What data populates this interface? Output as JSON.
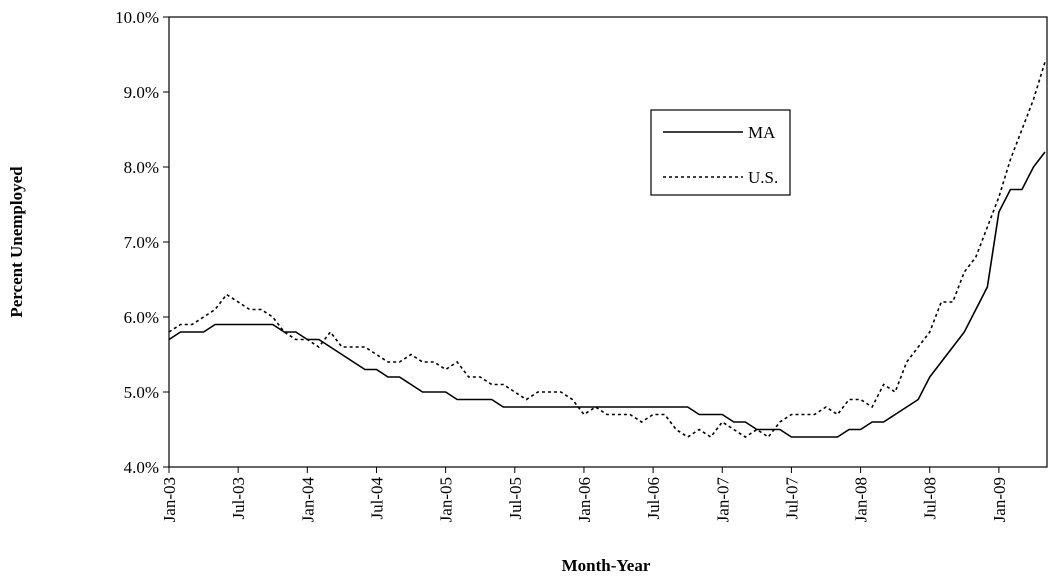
{
  "chart_data": {
    "type": "line",
    "x_label": "Month-Year",
    "y_label": "Percent Unemployed",
    "categories": [
      "Jan-03",
      null,
      null,
      null,
      null,
      null,
      "Jul-03",
      null,
      null,
      null,
      null,
      null,
      "Jan-04",
      null,
      null,
      null,
      null,
      null,
      "Jul-04",
      null,
      null,
      null,
      null,
      null,
      "Jan-05",
      null,
      null,
      null,
      null,
      null,
      "Jul-05",
      null,
      null,
      null,
      null,
      null,
      "Jan-06",
      null,
      null,
      null,
      null,
      null,
      "Jul-06",
      null,
      null,
      null,
      null,
      null,
      "Jan-07",
      null,
      null,
      null,
      null,
      null,
      "Jul-07",
      null,
      null,
      null,
      null,
      null,
      "Jan-08",
      null,
      null,
      null,
      null,
      null,
      "Jul-08",
      null,
      null,
      null,
      null,
      null,
      "Jan-09",
      null,
      null,
      null,
      null
    ],
    "series": [
      {
        "name": "MA",
        "color": "#000000",
        "style": "solid",
        "values": [
          5.7,
          5.8,
          5.8,
          5.8,
          5.9,
          5.9,
          5.9,
          5.9,
          5.9,
          5.9,
          5.8,
          5.8,
          5.7,
          5.7,
          5.6,
          5.5,
          5.4,
          5.3,
          5.3,
          5.2,
          5.2,
          5.1,
          5.0,
          5.0,
          5.0,
          4.9,
          4.9,
          4.9,
          4.9,
          4.8,
          4.8,
          4.8,
          4.8,
          4.8,
          4.8,
          4.8,
          4.8,
          4.8,
          4.8,
          4.8,
          4.8,
          4.8,
          4.8,
          4.8,
          4.8,
          4.8,
          4.7,
          4.7,
          4.7,
          4.6,
          4.6,
          4.5,
          4.5,
          4.5,
          4.4,
          4.4,
          4.4,
          4.4,
          4.4,
          4.5,
          4.5,
          4.6,
          4.6,
          4.7,
          4.8,
          4.9,
          5.2,
          5.4,
          5.6,
          5.8,
          6.1,
          6.4,
          7.4,
          7.7,
          7.7,
          8.0,
          8.2
        ]
      },
      {
        "name": "U.S.",
        "color": "#000000",
        "style": "dotted",
        "values": [
          5.8,
          5.9,
          5.9,
          6.0,
          6.1,
          6.3,
          6.2,
          6.1,
          6.1,
          6.0,
          5.8,
          5.7,
          5.7,
          5.6,
          5.8,
          5.6,
          5.6,
          5.6,
          5.5,
          5.4,
          5.4,
          5.5,
          5.4,
          5.4,
          5.3,
          5.4,
          5.2,
          5.2,
          5.1,
          5.1,
          5.0,
          4.9,
          5.0,
          5.0,
          5.0,
          4.9,
          4.7,
          4.8,
          4.7,
          4.7,
          4.7,
          4.6,
          4.7,
          4.7,
          4.5,
          4.4,
          4.5,
          4.4,
          4.6,
          4.5,
          4.4,
          4.5,
          4.4,
          4.6,
          4.7,
          4.7,
          4.7,
          4.8,
          4.7,
          4.9,
          4.9,
          4.8,
          5.1,
          5.0,
          5.4,
          5.6,
          5.8,
          6.2,
          6.2,
          6.6,
          6.8,
          7.2,
          7.6,
          8.1,
          8.5,
          8.9,
          9.4
        ]
      }
    ],
    "ylim": [
      4,
      10
    ],
    "yticks": [
      {
        "value": 4,
        "label": "4.0%"
      },
      {
        "value": 5,
        "label": "5.0%"
      },
      {
        "value": 6,
        "label": "6.0%"
      },
      {
        "value": 7,
        "label": "7.0%"
      },
      {
        "value": 8,
        "label": "8.0%"
      },
      {
        "value": 9,
        "label": "9.0%"
      },
      {
        "value": 10,
        "label": "10.0%"
      }
    ],
    "grid": false
  }
}
